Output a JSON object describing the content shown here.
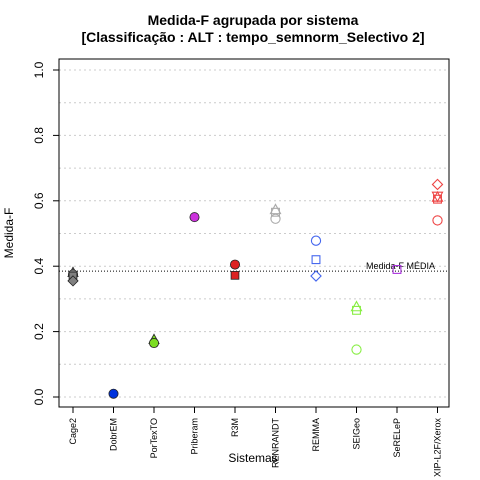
{
  "chart_data": {
    "type": "scatter",
    "title": "Medida-F agrupada por sistema",
    "subtitle": "[Classificação : ALT : tempo_semnorm_Selectivo 2]",
    "xlabel": "Sistemas",
    "ylabel": "Medida-F",
    "ylim": [
      0,
      1
    ],
    "yticks": [
      "0.0",
      "0.2",
      "0.4",
      "0.6",
      "0.8",
      "1.0"
    ],
    "grid": "horizontal dotted",
    "categories": [
      "Cage2",
      "DobrEM",
      "PorTexTO",
      "Priberam",
      "R3M",
      "RENRANDT",
      "REMMA",
      "SEIGeo",
      "SeRELeP",
      "XIP-L2F/Xerox"
    ],
    "reference_line": {
      "value": 0.385,
      "label": "Medida-F MÉDIA"
    },
    "points": [
      {
        "category": "Cage2",
        "value": 0.38,
        "shape": "triangle",
        "filled": true,
        "color": "#808080"
      },
      {
        "category": "Cage2",
        "value": 0.375,
        "shape": "circle",
        "filled": true,
        "color": "#808080"
      },
      {
        "category": "Cage2",
        "value": 0.37,
        "shape": "square",
        "filled": true,
        "color": "#808080"
      },
      {
        "category": "Cage2",
        "value": 0.355,
        "shape": "diamond",
        "filled": true,
        "color": "#808080"
      },
      {
        "category": "DobrEM",
        "value": 0.01,
        "shape": "circle",
        "filled": true,
        "color": "#0033dd"
      },
      {
        "category": "PorTexTO",
        "value": 0.175,
        "shape": "triangle",
        "filled": true,
        "color": "#7cdd22"
      },
      {
        "category": "PorTexTO",
        "value": 0.165,
        "shape": "circle",
        "filled": true,
        "color": "#7cdd22"
      },
      {
        "category": "Priberam",
        "value": 0.55,
        "shape": "circle",
        "filled": true,
        "color": "#cc33dd"
      },
      {
        "category": "R3M",
        "value": 0.405,
        "shape": "circle",
        "filled": true,
        "color": "#dd2222"
      },
      {
        "category": "R3M",
        "value": 0.372,
        "shape": "square",
        "filled": true,
        "color": "#dd2222"
      },
      {
        "category": "RENRANDT",
        "value": 0.572,
        "shape": "triangle",
        "filled": false,
        "color": "#aaaaaa"
      },
      {
        "category": "RENRANDT",
        "value": 0.565,
        "shape": "square",
        "filled": false,
        "color": "#aaaaaa"
      },
      {
        "category": "RENRANDT",
        "value": 0.545,
        "shape": "circle",
        "filled": false,
        "color": "#aaaaaa"
      },
      {
        "category": "REMMA",
        "value": 0.478,
        "shape": "circle",
        "filled": false,
        "color": "#4466ee"
      },
      {
        "category": "REMMA",
        "value": 0.42,
        "shape": "square",
        "filled": false,
        "color": "#4466ee"
      },
      {
        "category": "REMMA",
        "value": 0.37,
        "shape": "diamond",
        "filled": false,
        "color": "#4466ee"
      },
      {
        "category": "SEIGeo",
        "value": 0.275,
        "shape": "triangle",
        "filled": false,
        "color": "#88ee44"
      },
      {
        "category": "SEIGeo",
        "value": 0.265,
        "shape": "square",
        "filled": false,
        "color": "#88ee44"
      },
      {
        "category": "SEIGeo",
        "value": 0.145,
        "shape": "circle",
        "filled": false,
        "color": "#88ee44"
      },
      {
        "category": "SeRELeP",
        "value": 0.39,
        "shape": "square",
        "filled": false,
        "color": "#aa33dd"
      },
      {
        "category": "XIP-L2F/Xerox",
        "value": 0.65,
        "shape": "diamond",
        "filled": false,
        "color": "#ee4444"
      },
      {
        "category": "XIP-L2F/Xerox",
        "value": 0.615,
        "shape": "triangle-down",
        "filled": false,
        "color": "#ee4444"
      },
      {
        "category": "XIP-L2F/Xerox",
        "value": 0.61,
        "shape": "triangle",
        "filled": false,
        "color": "#ee4444"
      },
      {
        "category": "XIP-L2F/Xerox",
        "value": 0.605,
        "shape": "square",
        "filled": false,
        "color": "#ee4444"
      },
      {
        "category": "XIP-L2F/Xerox",
        "value": 0.54,
        "shape": "circle",
        "filled": false,
        "color": "#ee4444"
      }
    ]
  }
}
